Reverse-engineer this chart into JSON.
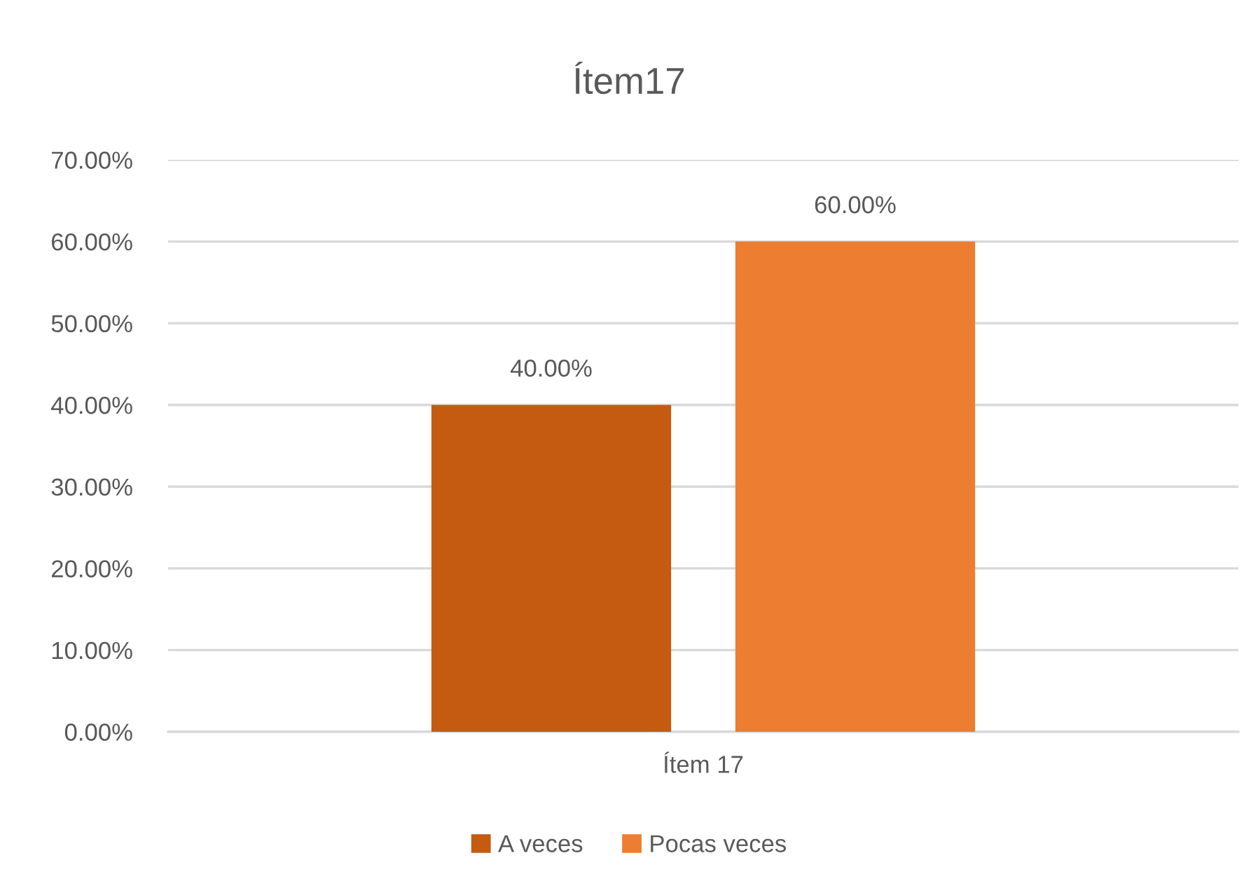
{
  "chart_data": {
    "type": "bar",
    "title": "Ítem17",
    "categories": [
      "Ítem 17"
    ],
    "series": [
      {
        "name": "A veces",
        "color": "#c55a11",
        "values": [
          40
        ],
        "value_labels": [
          "40.00%"
        ]
      },
      {
        "name": "Pocas veces",
        "color": "#ed7d31",
        "values": [
          60
        ],
        "value_labels": [
          "60.00%"
        ]
      }
    ],
    "ylim": [
      0,
      70
    ],
    "yticks": [
      {
        "value": 0,
        "label": "0.00%"
      },
      {
        "value": 10,
        "label": "10.00%"
      },
      {
        "value": 20,
        "label": "20.00%"
      },
      {
        "value": 30,
        "label": "30.00%"
      },
      {
        "value": 40,
        "label": "40.00%"
      },
      {
        "value": 50,
        "label": "50.00%"
      },
      {
        "value": 60,
        "label": "60.00%"
      },
      {
        "value": 70,
        "label": "70.00%"
      }
    ],
    "grid": "y",
    "legend": "bottom"
  }
}
